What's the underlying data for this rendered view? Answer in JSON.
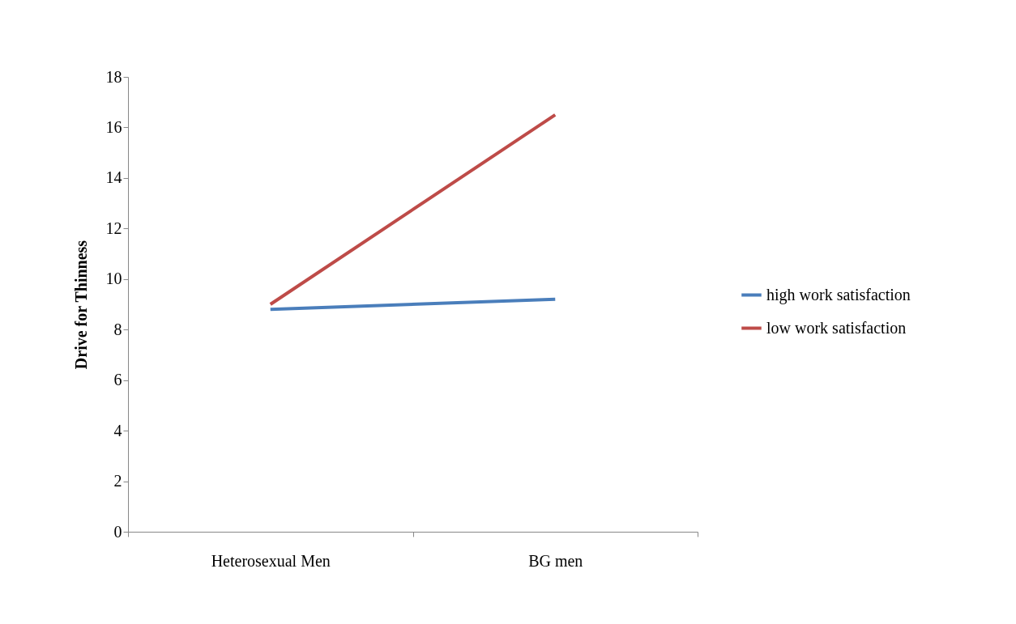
{
  "chart_data": {
    "type": "line",
    "ylabel": "Drive for Thinness",
    "categories": [
      "Heterosexual Men",
      "BG men"
    ],
    "series": [
      {
        "name": "high work satisfaction",
        "color": "#4a7ebb",
        "values": [
          8.8,
          9.2
        ]
      },
      {
        "name": "low work satisfaction",
        "color": "#be4b48",
        "values": [
          9.0,
          16.5
        ]
      }
    ],
    "ylim": [
      0,
      18
    ],
    "yticks": [
      0,
      2,
      4,
      6,
      8,
      10,
      12,
      14,
      16,
      18
    ],
    "grid": false,
    "legend": "right",
    "marker": "none",
    "line_style": "solid"
  }
}
